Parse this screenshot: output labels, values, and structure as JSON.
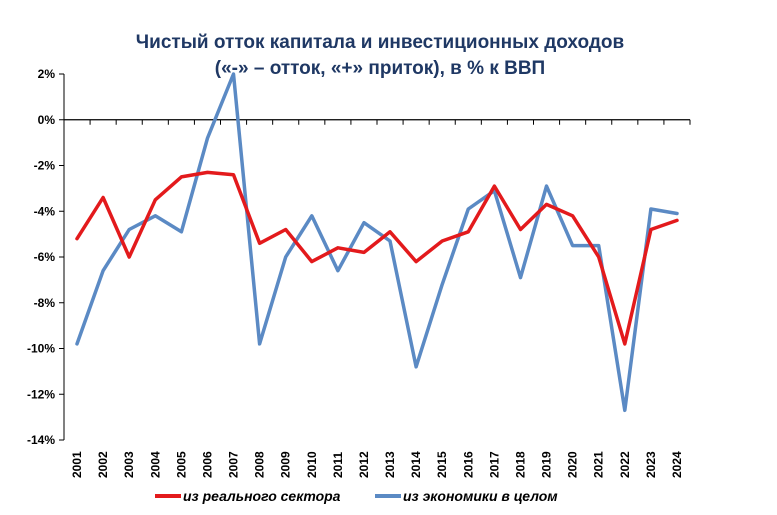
{
  "chart_data": {
    "type": "line",
    "title": "Чистый отток капитала и инвестиционных доходов",
    "subtitle": "(«-» – отток, «+» приток), в % к ВВП",
    "xlabel": "",
    "ylabel": "",
    "x": [
      "2001",
      "2002",
      "2003",
      "2004",
      "2005",
      "2006",
      "2007",
      "2008",
      "2009",
      "2010",
      "2011",
      "2012",
      "2013",
      "2014",
      "2015",
      "2016",
      "2017",
      "2018",
      "2019",
      "2020",
      "2021",
      "2022",
      "2023",
      "2024"
    ],
    "y_ticks": [
      "2%",
      "0%",
      "-2%",
      "-4%",
      "-6%",
      "-8%",
      "-10%",
      "-12%",
      "-14%"
    ],
    "ylim": [
      -14,
      2
    ],
    "grid": false,
    "legend_position": "bottom",
    "series": [
      {
        "name": "из реального сектора",
        "color": "#e31a1c",
        "values": [
          -5.2,
          -3.4,
          -6.0,
          -3.5,
          -2.5,
          -2.3,
          -2.4,
          -5.4,
          -4.8,
          -6.2,
          -5.6,
          -5.8,
          -4.9,
          -6.2,
          -5.3,
          -4.9,
          -2.9,
          -4.8,
          -3.7,
          -4.2,
          -6.0,
          -9.8,
          -4.8,
          -4.4
        ]
      },
      {
        "name": "из экономики в целом",
        "color": "#5b8ac4",
        "values": [
          -9.8,
          -6.6,
          -4.8,
          -4.2,
          -4.9,
          -0.8,
          2.0,
          -9.8,
          -6.0,
          -4.2,
          -6.6,
          -4.5,
          -5.3,
          -10.8,
          -7.2,
          -3.9,
          -3.1,
          -6.9,
          -2.9,
          -5.5,
          -5.5,
          -12.7,
          -3.9,
          -4.1
        ]
      }
    ]
  }
}
